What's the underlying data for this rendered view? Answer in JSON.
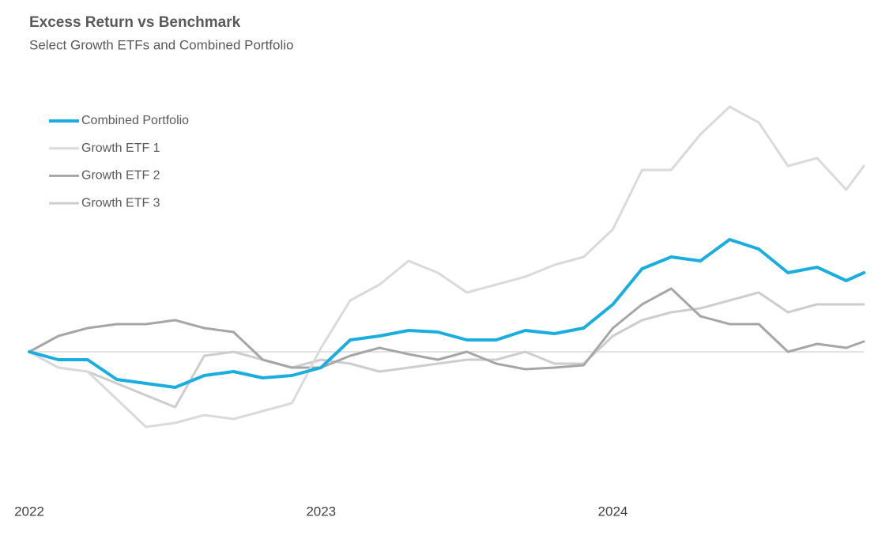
{
  "chart_data": {
    "type": "line",
    "title": "Excess Return vs Benchmark",
    "subtitle": "Select Growth ETFs and Combined Portfolio",
    "x": [
      2022.0,
      2022.1,
      2022.2,
      2022.3,
      2022.4,
      2022.5,
      2022.6,
      2022.7,
      2022.8,
      2022.9,
      2023.0,
      2023.1,
      2023.2,
      2023.3,
      2023.4,
      2023.5,
      2023.6,
      2023.7,
      2023.8,
      2023.9,
      2024.0,
      2024.1,
      2024.2,
      2024.3,
      2024.4,
      2024.5,
      2024.6,
      2024.7,
      2024.8,
      2024.86
    ],
    "xlim": [
      2022,
      2024.86
    ],
    "xticks": [
      2022,
      2023,
      2024
    ],
    "ylim": [
      -16.5,
      32.5
    ],
    "legend": "top-left",
    "series": [
      {
        "name": "Combined Portfolio",
        "color": "#1aaee0",
        "line_width": 4,
        "values": [
          0,
          -1,
          -1,
          -3.5,
          -4,
          -4.5,
          -3,
          -2.5,
          -3.3,
          -3,
          -2,
          1.5,
          2,
          2.7,
          2.5,
          1.5,
          1.5,
          2.7,
          2.3,
          3,
          6,
          10.5,
          12,
          11.5,
          14.2,
          13,
          10,
          10.7,
          9,
          10
        ]
      },
      {
        "name": "Growth ETF 1",
        "color": "#dadada",
        "line_width": 3,
        "values": [
          0,
          -2,
          -2.5,
          -6,
          -9.5,
          -9,
          -8,
          -8.5,
          -7.5,
          -6.5,
          0.5,
          6.5,
          8.5,
          11.5,
          10,
          7.5,
          8.5,
          9.5,
          11,
          12,
          15.5,
          23,
          23,
          27.5,
          31,
          29,
          23.5,
          24.5,
          20.5,
          23.5
        ]
      },
      {
        "name": "Growth ETF 2",
        "color": "#a6a6a6",
        "line_width": 3,
        "values": [
          0,
          2,
          3,
          3.5,
          3.5,
          4,
          3,
          2.5,
          -1,
          -2,
          -2,
          -0.5,
          0.5,
          -0.3,
          -1,
          0,
          -1.5,
          -2.2,
          -2,
          -1.7,
          3,
          6,
          8,
          4.5,
          3.5,
          3.5,
          0,
          1,
          0.5,
          1.3
        ]
      },
      {
        "name": "Growth ETF 3",
        "color": "#cdcdcd",
        "line_width": 3,
        "values": [
          0,
          -2,
          -2.5,
          -4,
          -5.5,
          -7,
          -0.5,
          0,
          -1,
          -2,
          -1,
          -1.5,
          -2.5,
          -2,
          -1.5,
          -1,
          -1,
          0,
          -1.5,
          -1.5,
          2,
          4,
          5,
          5.5,
          6.5,
          7.5,
          5,
          6,
          6,
          6
        ]
      }
    ]
  }
}
